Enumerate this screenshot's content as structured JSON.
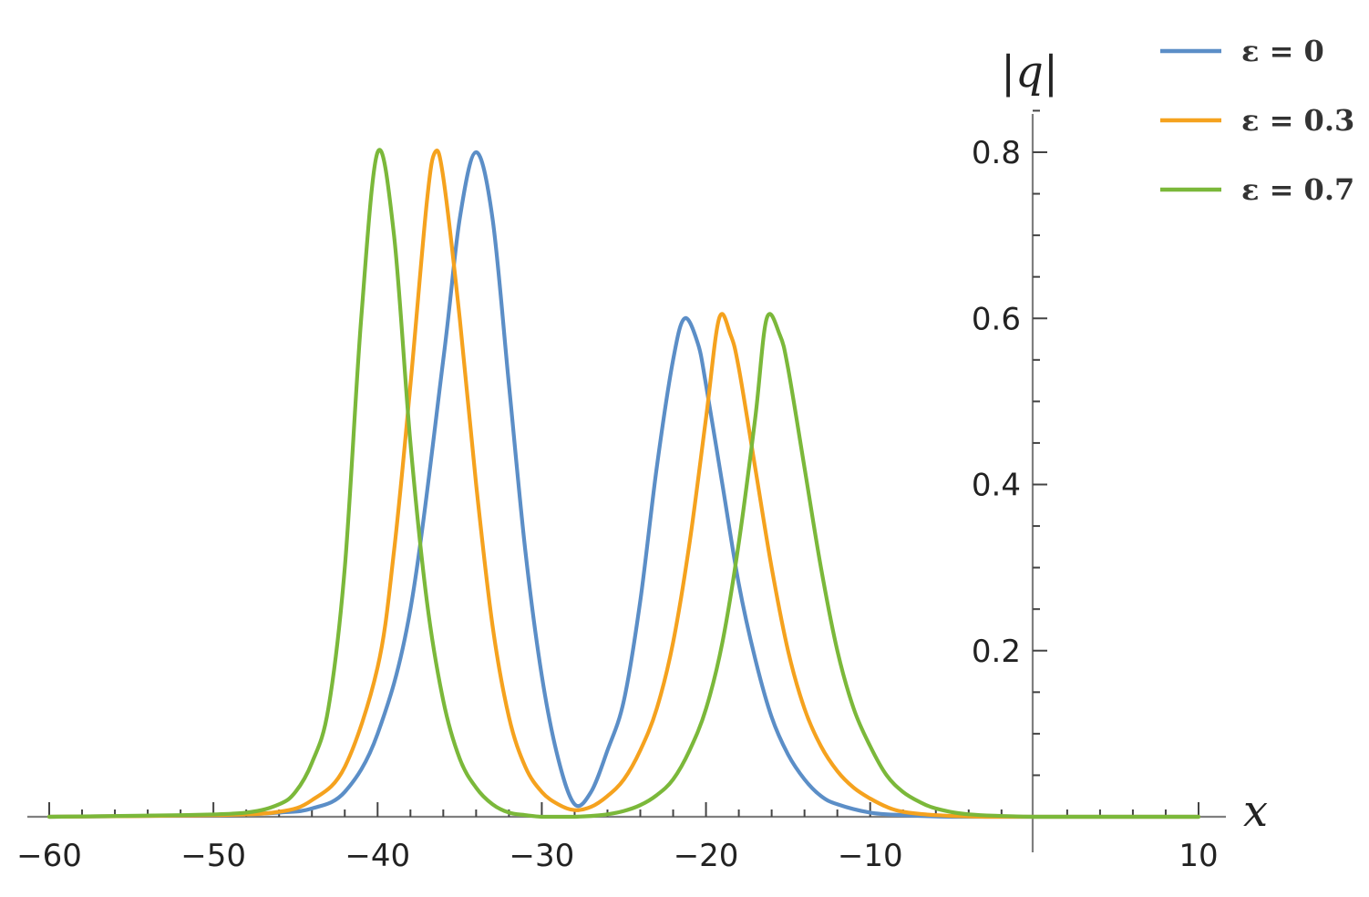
{
  "chart_data": {
    "type": "line",
    "title": "",
    "xlabel": "x",
    "ylabel": "|q|",
    "xlim": [
      -60,
      10
    ],
    "ylim": [
      0,
      0.8
    ],
    "x_ticks": [
      -60,
      -50,
      -40,
      -30,
      -20,
      -10,
      10
    ],
    "x_tick_labels": [
      "−60",
      "−50",
      "−40",
      "−30",
      "−20",
      "−10",
      "10"
    ],
    "y_ticks": [
      0.2,
      0.4,
      0.6,
      0.8
    ],
    "y_tick_labels": [
      "0.2",
      "0.4",
      "0.6",
      "0.8"
    ],
    "grid": false,
    "legend_position": "top-right",
    "series": [
      {
        "name": "ε = 0",
        "color": "#5b8ec7",
        "x": [
          -60,
          -50,
          -46,
          -44,
          -42,
          -40,
          -38,
          -36,
          -35,
          -34,
          -33,
          -32,
          -31,
          -30,
          -29,
          -28,
          -27,
          -26,
          -25,
          -24,
          -23,
          -22,
          -21.3,
          -20.5,
          -20,
          -19,
          -18,
          -17,
          -16,
          -15,
          -14,
          -13,
          -12,
          -10,
          -8,
          -5,
          0,
          5,
          10
        ],
        "y": [
          0,
          0.002,
          0.005,
          0.01,
          0.03,
          0.1,
          0.25,
          0.55,
          0.72,
          0.8,
          0.72,
          0.52,
          0.32,
          0.17,
          0.07,
          0.015,
          0.03,
          0.08,
          0.14,
          0.26,
          0.42,
          0.55,
          0.6,
          0.57,
          0.52,
          0.4,
          0.28,
          0.19,
          0.12,
          0.075,
          0.045,
          0.025,
          0.015,
          0.005,
          0.002,
          0,
          0,
          0,
          0
        ]
      },
      {
        "name": "ε = 0.3",
        "color": "#f5a21e",
        "x": [
          -60,
          -50,
          -46,
          -44,
          -42,
          -40,
          -39,
          -38,
          -37,
          -36.5,
          -36,
          -35,
          -34,
          -33,
          -32,
          -31,
          -30,
          -29,
          -28,
          -27,
          -26,
          -25,
          -24,
          -23,
          -22,
          -21,
          -20,
          -19.2,
          -18.5,
          -18,
          -17,
          -16,
          -15,
          -14,
          -13,
          -12,
          -11,
          -10,
          -9,
          -8,
          -6,
          -3,
          0,
          5,
          10
        ],
        "y": [
          0,
          0.002,
          0.006,
          0.02,
          0.06,
          0.18,
          0.32,
          0.52,
          0.74,
          0.8,
          0.77,
          0.6,
          0.4,
          0.23,
          0.12,
          0.06,
          0.03,
          0.015,
          0.008,
          0.012,
          0.025,
          0.045,
          0.08,
          0.13,
          0.21,
          0.33,
          0.48,
          0.6,
          0.58,
          0.54,
          0.42,
          0.3,
          0.2,
          0.13,
          0.085,
          0.055,
          0.035,
          0.022,
          0.012,
          0.006,
          0.002,
          0,
          0,
          0,
          0
        ]
      },
      {
        "name": "ε = 0.7",
        "color": "#7bb83a",
        "x": [
          -60,
          -52,
          -48,
          -46,
          -45,
          -44,
          -43,
          -42,
          -41,
          -40,
          -39,
          -38,
          -37,
          -36,
          -35,
          -34,
          -33,
          -32,
          -31,
          -30,
          -29,
          -28,
          -27,
          -26,
          -25,
          -24,
          -23,
          -22,
          -21,
          -20,
          -19,
          -18,
          -17,
          -16.3,
          -15.5,
          -15,
          -14,
          -13,
          -12,
          -11,
          -10,
          -9,
          -8,
          -7,
          -6,
          -4,
          0,
          5,
          10
        ],
        "y": [
          0,
          0.002,
          0.005,
          0.015,
          0.03,
          0.065,
          0.13,
          0.3,
          0.6,
          0.8,
          0.7,
          0.45,
          0.26,
          0.14,
          0.07,
          0.035,
          0.015,
          0.005,
          0.002,
          0,
          0,
          0,
          0.001,
          0.003,
          0.007,
          0.014,
          0.026,
          0.045,
          0.08,
          0.13,
          0.21,
          0.33,
          0.48,
          0.6,
          0.58,
          0.54,
          0.42,
          0.3,
          0.2,
          0.13,
          0.085,
          0.05,
          0.03,
          0.018,
          0.01,
          0.003,
          0,
          0,
          0
        ]
      }
    ]
  }
}
